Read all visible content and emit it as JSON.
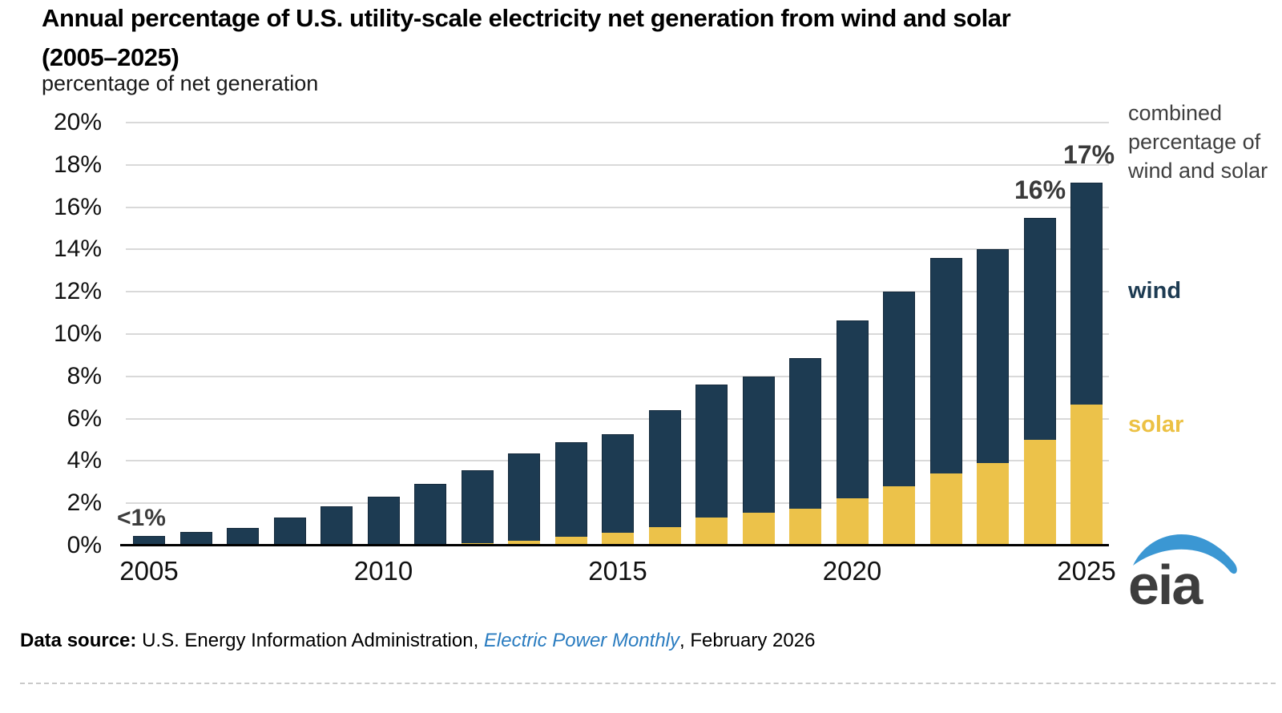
{
  "header": {
    "title_line1": "Annual percentage of U.S. utility-scale electricity net generation from wind and solar",
    "title_line2": "(2005–2025)",
    "subtitle": "percentage of net generation"
  },
  "legend": {
    "combined_label": "combined percentage of wind and solar",
    "wind_label": "wind",
    "solar_label": "solar"
  },
  "annotations": {
    "first_bar_label": "<1%",
    "bar_2024_label": "16%",
    "bar_2025_label": "17%"
  },
  "source": {
    "label": "Data source:",
    "text_before_link": "U.S. Energy Information Administration,",
    "link_text": "Electric Power Monthly",
    "text_after_link": ", February 2026"
  },
  "logo": {
    "text": "eia"
  },
  "colors": {
    "wind": "#1d3b52",
    "solar": "#ecc24a",
    "gridline": "#d9d9d9",
    "axis": "#000000",
    "value_label_text": "#3a3a3a",
    "legend_text": "#3f3f3f",
    "link_blue": "#2a7cc0",
    "logo_blue": "#3b97d3",
    "logo_text": "#3d3d3d"
  },
  "chart_data": {
    "type": "bar",
    "stacked": true,
    "title": "Annual percentage of U.S. utility-scale electricity net generation from wind and solar (2005–2025)",
    "ylabel": "percentage of net generation",
    "ylim": [
      0,
      20
    ],
    "y_tick_step": 2,
    "y_tick_labels": [
      "0%",
      "2%",
      "4%",
      "6%",
      "8%",
      "10%",
      "12%",
      "14%",
      "16%",
      "18%",
      "20%"
    ],
    "x_tick_years": [
      2005,
      2010,
      2015,
      2020,
      2025
    ],
    "grid": true,
    "legend_position": "right",
    "categories": [
      2005,
      2006,
      2007,
      2008,
      2009,
      2010,
      2011,
      2012,
      2013,
      2014,
      2015,
      2016,
      2017,
      2018,
      2019,
      2020,
      2021,
      2022,
      2023,
      2024,
      2025
    ],
    "series": [
      {
        "name": "solar",
        "color": "#ecc24a",
        "values": [
          0.01,
          0.01,
          0.01,
          0.02,
          0.02,
          0.03,
          0.04,
          0.11,
          0.23,
          0.43,
          0.61,
          0.89,
          1.32,
          1.55,
          1.75,
          2.25,
          2.8,
          3.4,
          3.9,
          5.0,
          6.65
        ]
      },
      {
        "name": "wind",
        "color": "#1d3b52",
        "values": [
          0.44,
          0.65,
          0.83,
          1.32,
          1.85,
          2.27,
          2.86,
          3.46,
          4.13,
          4.44,
          4.67,
          5.5,
          6.3,
          6.45,
          7.1,
          8.4,
          9.2,
          10.2,
          10.1,
          10.5,
          10.5
        ]
      }
    ],
    "annotated_totals": {
      "2005": "<1%",
      "2024": "16%",
      "2025": "17%"
    }
  }
}
